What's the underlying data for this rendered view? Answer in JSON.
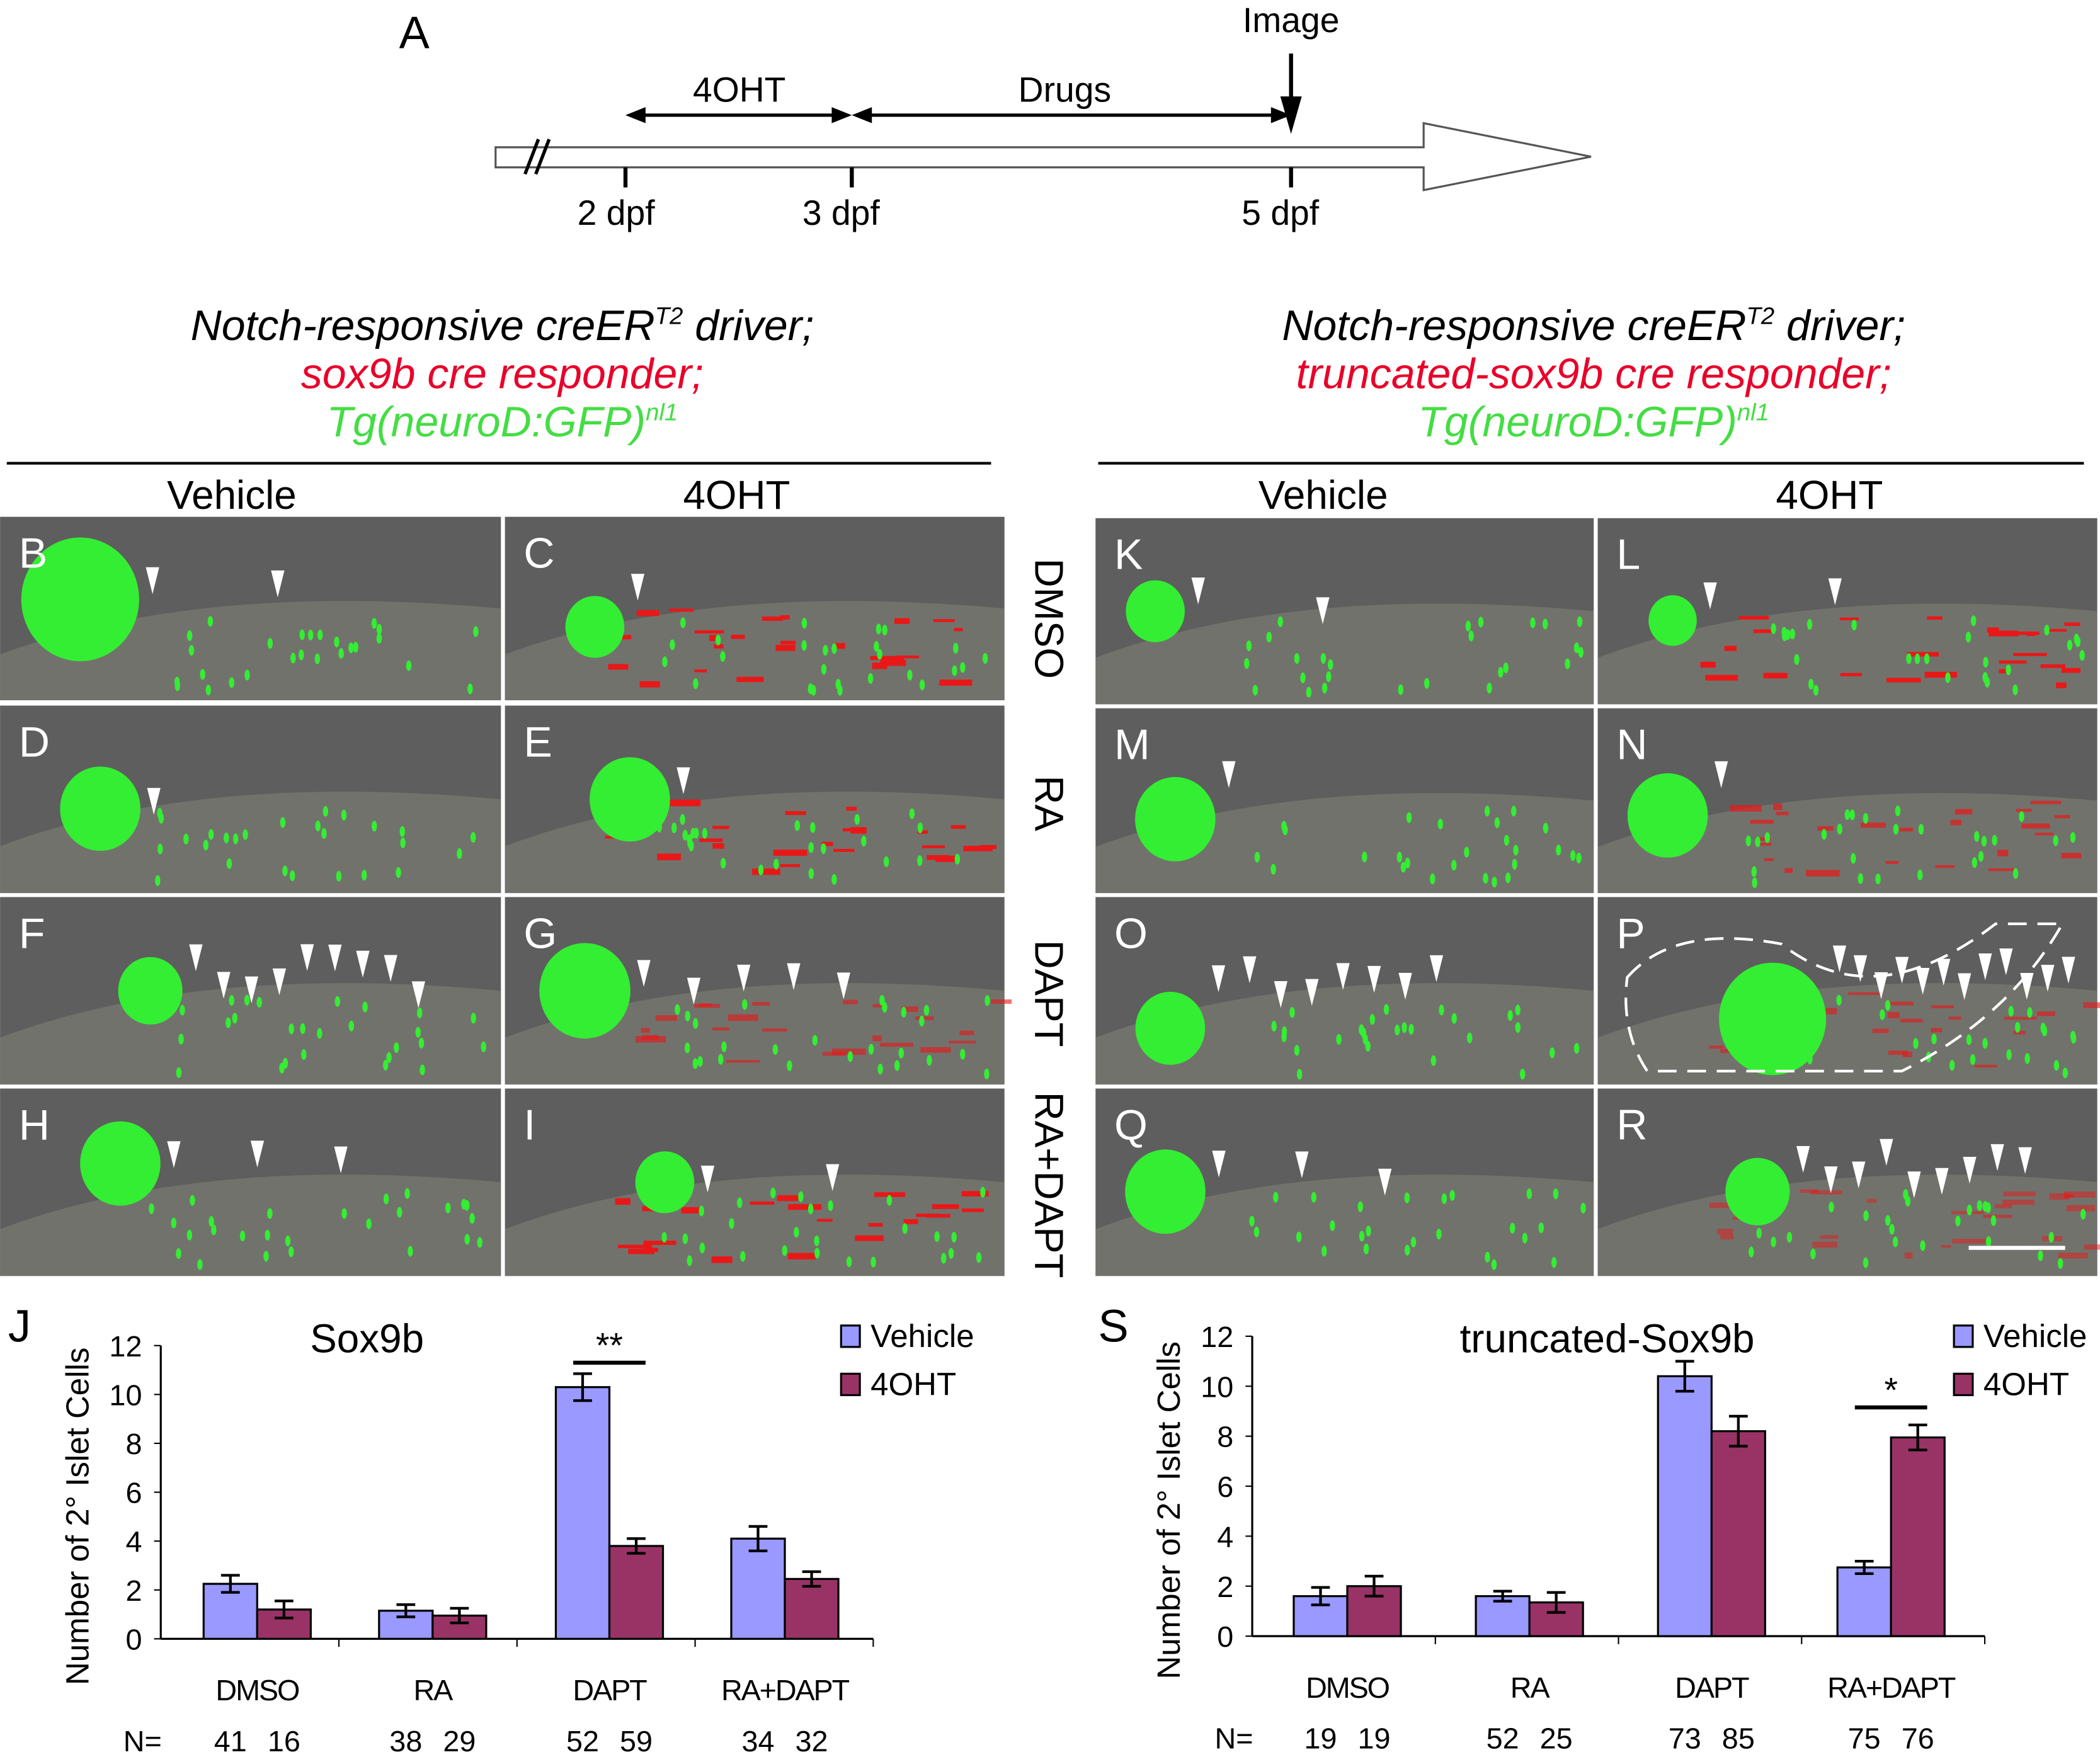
{
  "timeline": {
    "panel_label": "A",
    "image_label": "Image",
    "phase1_label": "4OHT",
    "phase2_label": "Drugs",
    "ticks": [
      "2 dpf",
      "3 dpf",
      "5 dpf"
    ]
  },
  "left_header": {
    "line1": "Notch-responsive creER",
    "line1_sup": "T2",
    "line1_end": " driver;",
    "line2": "sox9b cre responder;",
    "line3": "Tg(neuroD:GFP)",
    "line3_sup": "nl1",
    "col1": "Vehicle",
    "col2": "4OHT"
  },
  "right_header": {
    "line1": "Notch-responsive creER",
    "line1_sup": "T2",
    "line1_end": " driver;",
    "line2": "truncated-sox9b cre responder;",
    "line3": "Tg(neuroD:GFP)",
    "line3_sup": "nl1",
    "col1": "Vehicle",
    "col2": "4OHT"
  },
  "row_labels": [
    "DMSO",
    "RA",
    "DAPT",
    "RA+DAPT"
  ],
  "left_panels": [
    "B",
    "C",
    "D",
    "E",
    "F",
    "G",
    "H",
    "I"
  ],
  "right_panels": [
    "K",
    "L",
    "M",
    "N",
    "O",
    "P",
    "Q",
    "R"
  ],
  "colors": {
    "vehicle": "#9999FF",
    "ohT": "#993366",
    "gfp": "#33ee33",
    "responder_red": "#e8002a",
    "neurod_green": "#44dd44"
  },
  "chart_data": [
    {
      "type": "bar",
      "panel_label": "J",
      "title": "Sox9b",
      "ylabel": "Number of 2° Islet Cells",
      "ylim": [
        0,
        12
      ],
      "yticks": [
        "0",
        "2",
        "4",
        "6",
        "8",
        "10",
        "12"
      ],
      "categories": [
        "DMSO",
        "RA",
        "DAPT",
        "RA+DAPT"
      ],
      "legend_position": "top-right",
      "series": [
        {
          "name": "Vehicle",
          "values": [
            2.25,
            1.15,
            10.3,
            4.1
          ],
          "errors": [
            0.35,
            0.25,
            0.55,
            0.5
          ]
        },
        {
          "name": "4OHT",
          "values": [
            1.2,
            0.95,
            3.8,
            2.45
          ],
          "errors": [
            0.35,
            0.3,
            0.3,
            0.3
          ]
        }
      ],
      "significance": [
        {
          "category": "DAPT",
          "label": "**"
        }
      ],
      "n_label": "N=",
      "n_values": [
        [
          "41",
          "16"
        ],
        [
          "38",
          "29"
        ],
        [
          "52",
          "59"
        ],
        [
          "34",
          "32"
        ]
      ]
    },
    {
      "type": "bar",
      "panel_label": "S",
      "title": "truncated-Sox9b",
      "ylabel": "Number of 2° Islet Cells",
      "ylim": [
        0,
        12
      ],
      "yticks": [
        "0",
        "2",
        "4",
        "6",
        "8",
        "10",
        "12"
      ],
      "categories": [
        "DMSO",
        "RA",
        "DAPT",
        "RA+DAPT"
      ],
      "legend_position": "top-right",
      "series": [
        {
          "name": "Vehicle",
          "values": [
            1.6,
            1.6,
            10.4,
            2.75
          ],
          "errors": [
            0.35,
            0.2,
            0.6,
            0.25
          ]
        },
        {
          "name": "4OHT",
          "values": [
            2.0,
            1.35,
            8.2,
            7.95
          ],
          "errors": [
            0.4,
            0.4,
            0.6,
            0.5
          ]
        }
      ],
      "significance": [
        {
          "category": "RA+DAPT",
          "label": "*"
        }
      ],
      "n_label": "N=",
      "n_values": [
        [
          "19",
          "19"
        ],
        [
          "52",
          "25"
        ],
        [
          "73",
          "85"
        ],
        [
          "75",
          "76"
        ]
      ]
    }
  ]
}
